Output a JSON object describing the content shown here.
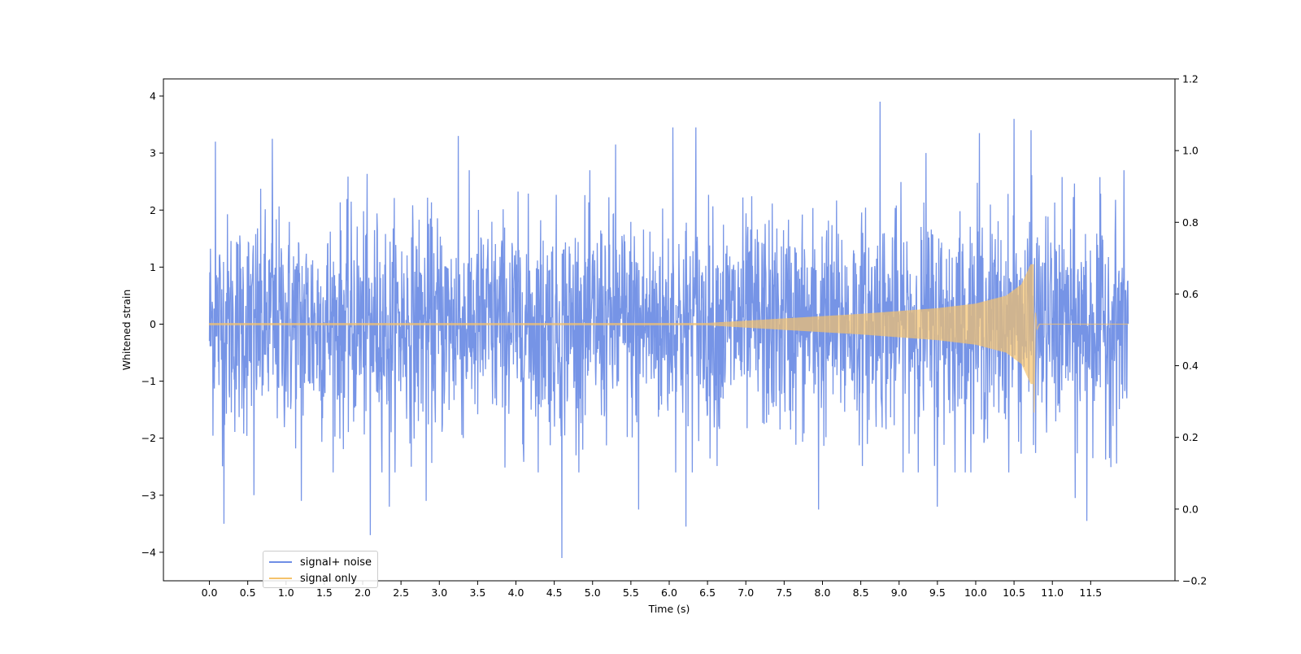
{
  "chart_data": {
    "type": "line",
    "title": "",
    "xlabel": "Time (s)",
    "ylabel": "Whitened strain",
    "y2label": "",
    "xlim": [
      -0.6,
      12.6
    ],
    "ylim": [
      -4.5,
      4.3
    ],
    "y2lim": [
      -0.2,
      1.2
    ],
    "x_ticks": [
      0.0,
      0.5,
      1.0,
      1.5,
      2.0,
      2.5,
      3.0,
      3.5,
      4.0,
      4.5,
      5.0,
      5.5,
      6.0,
      6.5,
      7.0,
      7.5,
      8.0,
      8.5,
      9.0,
      9.5,
      10.0,
      10.5,
      11.0,
      11.5
    ],
    "x_tick_labels": [
      "0.0",
      "0.5",
      "1.0",
      "1.5",
      "2.0",
      "2.5",
      "3.0",
      "3.5",
      "4.0",
      "4.5",
      "5.0",
      "5.5",
      "6.0",
      "6.5",
      "7.0",
      "7.5",
      "8.0",
      "8.5",
      "9.0",
      "9.5",
      "10.0",
      "10.5",
      "11.0",
      "11.5"
    ],
    "y_ticks": [
      4,
      3,
      2,
      1,
      0,
      -1,
      -2,
      -3,
      -4
    ],
    "y_tick_labels": [
      "4",
      "3",
      "2",
      "1",
      "0",
      "−1",
      "−2",
      "−3",
      "−4"
    ],
    "y2_ticks": [
      1.2,
      1.0,
      0.8,
      0.6,
      0.4,
      0.2,
      0.0,
      -0.2
    ],
    "y2_tick_labels": [
      "1.2",
      "1.0",
      "0.8",
      "0.6",
      "0.4",
      "0.2",
      "0.0",
      "−0.2"
    ],
    "grid": false,
    "legend_position": "bottom-left",
    "series": [
      {
        "name": "signal+ noise",
        "color": "#6f8ee5",
        "x_range": [
          0.0,
          11.99
        ],
        "typical_envelope": [
          -2.2,
          2.3
        ],
        "peak_max": 3.9,
        "peak_min": -4.1,
        "spikes": [
          {
            "x": 0.08,
            "y": 3.2
          },
          {
            "x": 0.19,
            "y": -3.5
          },
          {
            "x": 0.58,
            "y": -3.0
          },
          {
            "x": 0.82,
            "y": 3.25
          },
          {
            "x": 1.2,
            "y": -3.1
          },
          {
            "x": 2.1,
            "y": -3.7
          },
          {
            "x": 2.35,
            "y": -3.2
          },
          {
            "x": 2.83,
            "y": -3.1
          },
          {
            "x": 3.25,
            "y": 3.3
          },
          {
            "x": 4.6,
            "y": -4.1
          },
          {
            "x": 5.3,
            "y": 3.15
          },
          {
            "x": 5.6,
            "y": -3.25
          },
          {
            "x": 6.05,
            "y": 3.45
          },
          {
            "x": 6.22,
            "y": -3.55
          },
          {
            "x": 6.35,
            "y": 3.45
          },
          {
            "x": 7.95,
            "y": -3.25
          },
          {
            "x": 8.75,
            "y": 3.9
          },
          {
            "x": 9.35,
            "y": 3.0
          },
          {
            "x": 9.5,
            "y": -3.2
          },
          {
            "x": 10.05,
            "y": 3.35
          },
          {
            "x": 10.5,
            "y": 3.6
          },
          {
            "x": 10.72,
            "y": 3.4
          },
          {
            "x": 11.3,
            "y": -3.05
          },
          {
            "x": 11.45,
            "y": -3.45
          }
        ]
      },
      {
        "name": "signal only",
        "color": "#f5c26b",
        "x_range": [
          0.0,
          11.99
        ],
        "description": "chirp, amplitude ~0 until ~6.5 s, grows to ~1.05 / -1.55 at ~10.75 s, then ringdown to 0",
        "envelope_points": [
          {
            "x": 0.0,
            "amp": 0.02
          },
          {
            "x": 6.5,
            "amp": 0.02
          },
          {
            "x": 7.5,
            "amp": 0.1
          },
          {
            "x": 8.5,
            "amp": 0.18
          },
          {
            "x": 9.5,
            "amp": 0.28
          },
          {
            "x": 10.0,
            "amp": 0.36
          },
          {
            "x": 10.4,
            "amp": 0.5
          },
          {
            "x": 10.6,
            "amp": 0.7
          },
          {
            "x": 10.72,
            "amp": 1.05
          }
        ],
        "merger_x": 10.75,
        "merger_max": 1.05,
        "merger_min": -1.55
      }
    ]
  }
}
